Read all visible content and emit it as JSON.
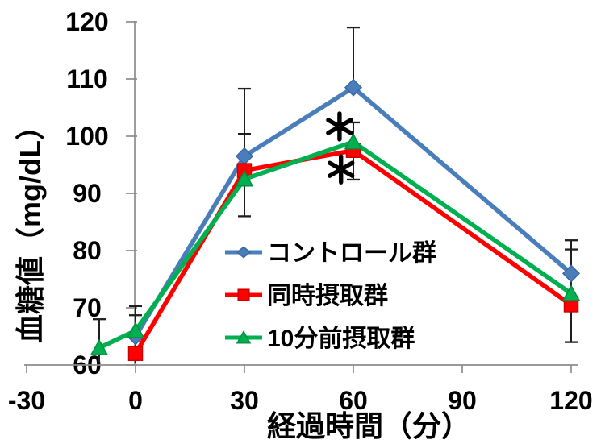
{
  "colors": {
    "background": "#ffffff",
    "axis": "#8c8c8c",
    "error_bar": "#1f1f1f",
    "text": "#000000",
    "annotation": "#000000"
  },
  "chart_data": {
    "type": "line",
    "title": "",
    "xlabel": "経過時間（分）",
    "ylabel": "血糖値（mg/dL）",
    "xlim": [
      -30,
      135
    ],
    "ylim": [
      60,
      120
    ],
    "xticks": [
      -30,
      0,
      30,
      60,
      90,
      120
    ],
    "yticks": [
      60,
      70,
      80,
      90,
      100,
      110,
      120
    ],
    "grid": false,
    "legend_position": "inside-lower-center",
    "series": [
      {
        "key": "control",
        "name": "コントロール群",
        "marker": "diamond",
        "color": "#4a7ebb",
        "marker_stroke": "#3a69a3",
        "points": [
          {
            "x": 0,
            "y": 65
          },
          {
            "x": 30,
            "y": 96.5
          },
          {
            "x": 60,
            "y": 108.5
          },
          {
            "x": 120,
            "y": 76
          }
        ]
      },
      {
        "key": "simultaneous-intake",
        "name": "同時摂取群",
        "marker": "square",
        "color": "#ff0000",
        "marker_stroke": "#cf0000",
        "points": [
          {
            "x": 0,
            "y": 62
          },
          {
            "x": 30,
            "y": 94
          },
          {
            "x": 60,
            "y": 97.5
          },
          {
            "x": 120,
            "y": 70.5
          }
        ]
      },
      {
        "key": "pre-intake-10min",
        "name": "10分前摂取群",
        "marker": "triangle",
        "color": "#00b050",
        "marker_stroke": "#00913f",
        "points": [
          {
            "x": -10,
            "y": 63
          },
          {
            "x": 0,
            "y": 66
          },
          {
            "x": 30,
            "y": 92.5
          },
          {
            "x": 60,
            "y": 99
          },
          {
            "x": 120,
            "y": 72.5
          }
        ]
      }
    ],
    "error_bars": [
      {
        "x": -10,
        "low": 60.5,
        "high": 68,
        "caps": [
          68
        ]
      },
      {
        "x": 0,
        "low": 60.3,
        "high": 70.3,
        "caps": [
          70.3,
          68.7
        ]
      },
      {
        "x": 30,
        "low": 86,
        "high": 108.3,
        "caps": [
          108.3,
          100.4,
          91.4,
          86
        ]
      },
      {
        "x": 60,
        "low": 108.5,
        "high": 119,
        "caps": [
          119
        ]
      },
      {
        "x": 60,
        "low": 92.4,
        "high": 102.4,
        "caps": [
          102.4,
          92.4
        ]
      },
      {
        "x": 120,
        "low": 64,
        "high": 81.8,
        "caps": [
          81.8,
          80.2,
          64
        ]
      }
    ],
    "annotations": [
      {
        "text": "*",
        "x": 56.2,
        "y": 101.7
      },
      {
        "text": "*",
        "x": 56.6,
        "y": 94.2
      }
    ]
  }
}
